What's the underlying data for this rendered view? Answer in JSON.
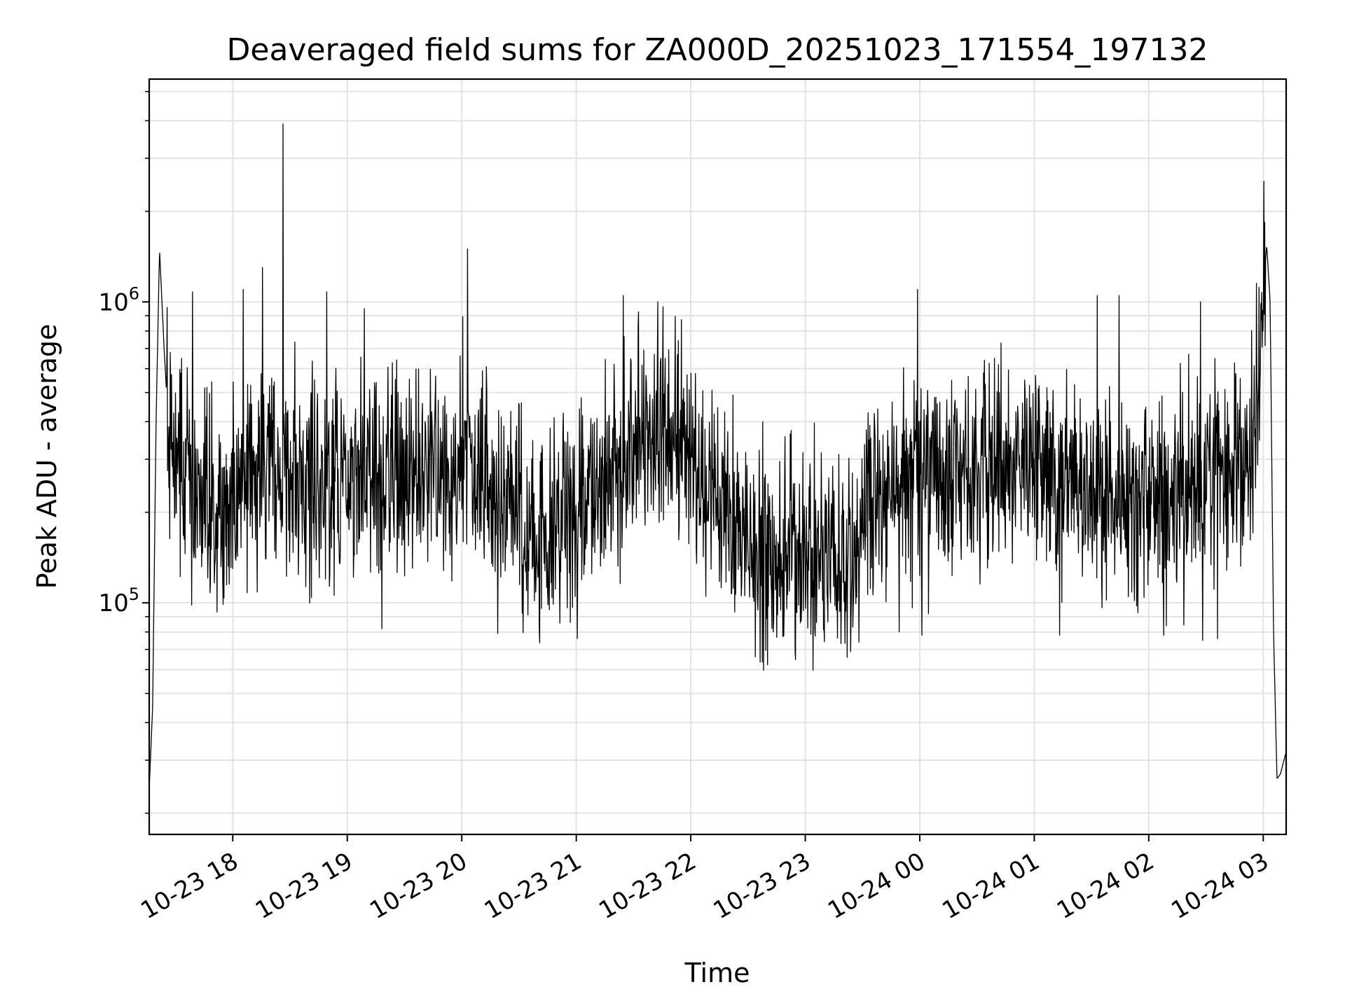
{
  "chart_data": {
    "type": "line",
    "title": "Deaveraged field sums for ZA000D_20251023_171554_197132",
    "xlabel": "Time",
    "ylabel": "Peak ADU - average",
    "yscale": "log",
    "ylim": [
      17000,
      5500000
    ],
    "xlim_hours": [
      17.27,
      27.2
    ],
    "grid": true,
    "line_color": "#000000",
    "x_ticks": [
      {
        "label": "10-23 18",
        "hour": 18
      },
      {
        "label": "10-23 19",
        "hour": 19
      },
      {
        "label": "10-23 20",
        "hour": 20
      },
      {
        "label": "10-23 21",
        "hour": 21
      },
      {
        "label": "10-23 22",
        "hour": 22
      },
      {
        "label": "10-23 23",
        "hour": 23
      },
      {
        "label": "10-24 00",
        "hour": 24
      },
      {
        "label": "10-24 01",
        "hour": 25
      },
      {
        "label": "10-24 02",
        "hour": 26
      },
      {
        "label": "10-24 03",
        "hour": 27
      }
    ],
    "y_major_ticks": [
      {
        "base": "10",
        "exp": "5",
        "value": 100000
      },
      {
        "base": "10",
        "exp": "6",
        "value": 1000000
      }
    ],
    "series": [
      {
        "name": "deaveraged field sum",
        "profile": {
          "hours": [
            17.27,
            17.3,
            17.33,
            17.36,
            17.4,
            17.45,
            17.55,
            17.7,
            17.9,
            18.1,
            18.3,
            18.5,
            18.8,
            19.0,
            19.3,
            19.6,
            19.9,
            20.0,
            20.3,
            20.6,
            21.0,
            21.2,
            21.4,
            21.6,
            21.8,
            22.0,
            22.2,
            22.4,
            22.6,
            22.8,
            23.0,
            23.2,
            23.4,
            23.6,
            23.8,
            24.0,
            24.3,
            24.6,
            25.0,
            25.3,
            25.6,
            25.9,
            26.2,
            26.5,
            26.8,
            26.9,
            26.95,
            27.0,
            27.03,
            27.06,
            27.09,
            27.12,
            27.15,
            27.2
          ],
          "median": [
            24000,
            45000,
            400000,
            1500000,
            700000,
            320000,
            300000,
            210000,
            200000,
            280000,
            310000,
            260000,
            250000,
            260000,
            270000,
            270000,
            310000,
            300000,
            220000,
            170000,
            180000,
            220000,
            300000,
            380000,
            360000,
            280000,
            220000,
            170000,
            140000,
            150000,
            150000,
            140000,
            140000,
            220000,
            240000,
            250000,
            270000,
            280000,
            280000,
            260000,
            240000,
            220000,
            220000,
            240000,
            270000,
            350000,
            500000,
            1100000,
            1550000,
            1000000,
            80000,
            26000,
            27000,
            32000
          ]
        },
        "spikes": [
          {
            "hour": 18.44,
            "value": 3900000
          },
          {
            "hour": 18.26,
            "value": 1300000
          },
          {
            "hour": 20.05,
            "value": 1500000
          },
          {
            "hour": 18.09,
            "value": 1100000
          },
          {
            "hour": 19.15,
            "value": 950000
          },
          {
            "hour": 21.41,
            "value": 1050000
          },
          {
            "hour": 21.71,
            "value": 1000000
          },
          {
            "hour": 23.98,
            "value": 1100000
          },
          {
            "hour": 25.55,
            "value": 1050000
          },
          {
            "hour": 25.74,
            "value": 1050000
          },
          {
            "hour": 26.45,
            "value": 1000000
          },
          {
            "hour": 17.65,
            "value": 1080000
          },
          {
            "hour": 18.82,
            "value": 1080000
          },
          {
            "hour": 18.67,
            "value": 100000
          },
          {
            "hour": 19.3,
            "value": 82000
          },
          {
            "hour": 22.72,
            "value": 80000
          },
          {
            "hour": 23.1,
            "value": 86000
          },
          {
            "hour": 23.82,
            "value": 80000
          },
          {
            "hour": 24.02,
            "value": 78000
          },
          {
            "hour": 25.22,
            "value": 78000
          },
          {
            "hour": 26.13,
            "value": 78000
          },
          {
            "hour": 26.47,
            "value": 75000
          },
          {
            "hour": 26.6,
            "value": 76000
          }
        ]
      }
    ]
  }
}
